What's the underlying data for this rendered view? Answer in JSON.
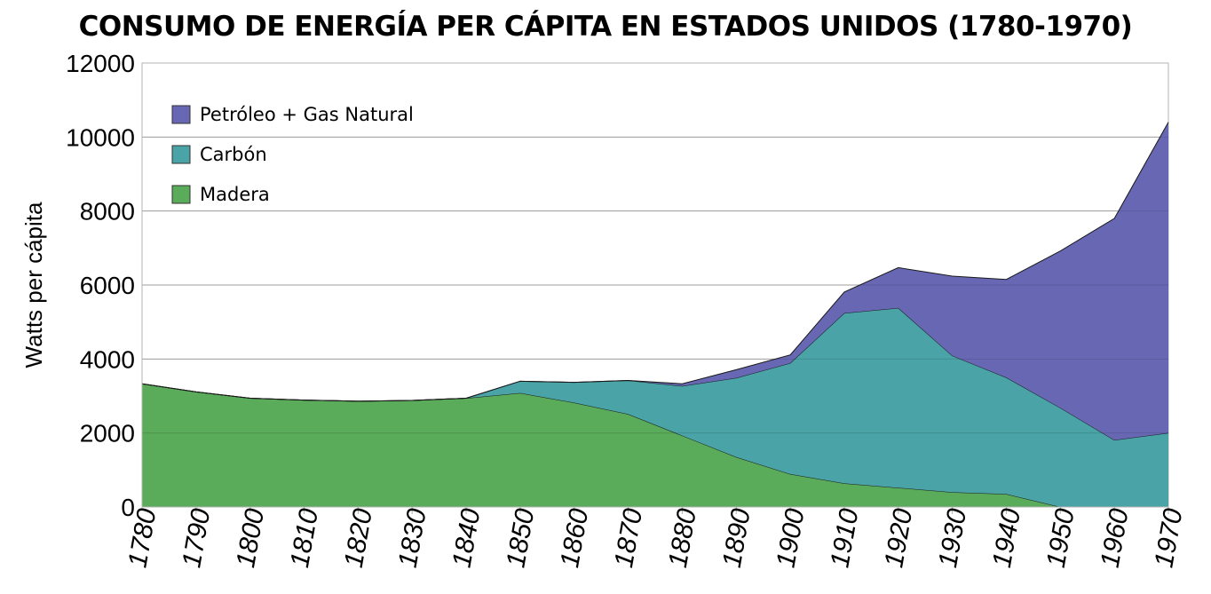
{
  "chart_data": {
    "type": "area",
    "stacked": true,
    "title": "CONSUMO DE ENERGÍA PER CÁPITA EN ESTADOS UNIDOS (1780-1970)",
    "xlabel": "",
    "ylabel": "Watts per cápita",
    "x": [
      1780,
      1790,
      1800,
      1810,
      1820,
      1830,
      1840,
      1850,
      1860,
      1870,
      1880,
      1890,
      1900,
      1910,
      1920,
      1930,
      1940,
      1950,
      1960,
      1970
    ],
    "xticks": [
      "1780",
      "1790",
      "1800",
      "1810",
      "1820",
      "1830",
      "1840",
      "1850",
      "1860",
      "1870",
      "1880",
      "1890",
      "1900",
      "1910",
      "1920",
      "1930",
      "1940",
      "1950",
      "1960",
      "1970"
    ],
    "ylim": [
      0,
      12000
    ],
    "yticks": [
      "0",
      "2000",
      "4000",
      "6000",
      "8000",
      "10000",
      "12000"
    ],
    "grid": true,
    "legend": "top-left",
    "series": [
      {
        "name": "Madera",
        "color": "#5aab5a",
        "values": [
          3330,
          3110,
          2940,
          2890,
          2860,
          2880,
          2940,
          3080,
          2820,
          2510,
          1930,
          1350,
          890,
          640,
          520,
          400,
          350,
          0,
          0,
          0
        ]
      },
      {
        "name": "Carbón",
        "color": "#4aa3a6",
        "values": [
          0,
          0,
          0,
          0,
          0,
          0,
          0,
          320,
          550,
          910,
          1340,
          2140,
          3000,
          4600,
          4860,
          3690,
          3150,
          2680,
          1810,
          2000
        ]
      },
      {
        "name": "Petróleo + Gas Natural",
        "color": "#6767b4",
        "values": [
          0,
          0,
          0,
          0,
          0,
          0,
          0,
          0,
          0,
          0,
          60,
          220,
          220,
          570,
          1090,
          2150,
          2650,
          4240,
          5990,
          8400
        ]
      }
    ]
  }
}
